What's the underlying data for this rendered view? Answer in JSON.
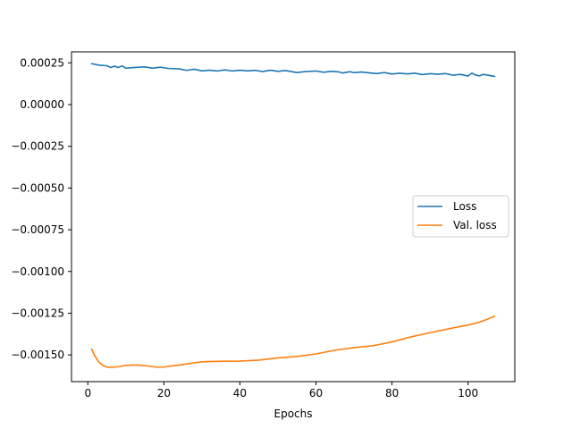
{
  "chart_data": {
    "type": "line",
    "title": "",
    "xlabel": "Epochs",
    "ylabel": "",
    "xlim": [
      -4.3,
      112.3
    ],
    "ylim": [
      -0.00166,
      0.000316
    ],
    "x_ticks": [
      0,
      20,
      40,
      60,
      80,
      100
    ],
    "x_tick_labels": [
      "0",
      "20",
      "40",
      "60",
      "80",
      "100"
    ],
    "y_ticks": [
      0.00025,
      0,
      -0.00025,
      -0.0005,
      -0.00075,
      -0.001,
      -0.00125,
      -0.0015
    ],
    "y_tick_labels": [
      "0.00025",
      "0.00000",
      "−0.00025",
      "−0.00050",
      "−0.00075",
      "−0.00100",
      "−0.00125",
      "−0.00150"
    ],
    "grid": false,
    "legend_position": "center-right",
    "series": [
      {
        "name": "Loss",
        "color": "#1f77b4",
        "points": [
          [
            1,
            0.000245
          ],
          [
            3,
            0.000236
          ],
          [
            5,
            0.000233
          ],
          [
            6,
            0.000222
          ],
          [
            7,
            0.00023
          ],
          [
            8,
            0.000222
          ],
          [
            9,
            0.000232
          ],
          [
            10,
            0.000218
          ],
          [
            12,
            0.000222
          ],
          [
            15,
            0.000226
          ],
          [
            17,
            0.000218
          ],
          [
            19,
            0.000224
          ],
          [
            21,
            0.000217
          ],
          [
            24,
            0.000214
          ],
          [
            26,
            0.000205
          ],
          [
            28,
            0.000212
          ],
          [
            30,
            0.000202
          ],
          [
            32,
            0.000206
          ],
          [
            34,
            0.000201
          ],
          [
            36,
            0.000208
          ],
          [
            38,
            0.000201
          ],
          [
            40,
            0.000206
          ],
          [
            42,
            0.000202
          ],
          [
            44,
            0.000205
          ],
          [
            46,
            0.000198
          ],
          [
            48,
            0.000206
          ],
          [
            50,
            0.000199
          ],
          [
            52,
            0.000204
          ],
          [
            54,
            0.000196
          ],
          [
            55,
            0.000192
          ],
          [
            57,
            0.000197
          ],
          [
            60,
            0.000201
          ],
          [
            62,
            0.000194
          ],
          [
            64,
            0.000199
          ],
          [
            66,
            0.000196
          ],
          [
            67,
            0.000189
          ],
          [
            69,
            0.000197
          ],
          [
            70,
            0.000191
          ],
          [
            72,
            0.000195
          ],
          [
            74,
            0.00019
          ],
          [
            76,
            0.000186
          ],
          [
            78,
            0.000192
          ],
          [
            80,
            0.000183
          ],
          [
            82,
            0.000188
          ],
          [
            84,
            0.000184
          ],
          [
            86,
            0.000188
          ],
          [
            88,
            0.00018
          ],
          [
            90,
            0.000185
          ],
          [
            92,
            0.000182
          ],
          [
            94,
            0.000186
          ],
          [
            96,
            0.000176
          ],
          [
            98,
            0.000181
          ],
          [
            100,
            0.000171
          ],
          [
            101,
            0.000188
          ],
          [
            102,
            0.000177
          ],
          [
            103,
            0.000172
          ],
          [
            104,
            0.000181
          ],
          [
            106,
            0.000173
          ],
          [
            107,
            0.000169
          ]
        ]
      },
      {
        "name": "Val. loss",
        "color": "#ff7f0e",
        "points": [
          [
            1,
            -0.001465
          ],
          [
            2,
            -0.001512
          ],
          [
            3,
            -0.001545
          ],
          [
            4,
            -0.001563
          ],
          [
            5,
            -0.001572
          ],
          [
            6,
            -0.001575
          ],
          [
            8,
            -0.001571
          ],
          [
            10,
            -0.001563
          ],
          [
            12,
            -0.00156
          ],
          [
            14,
            -0.001562
          ],
          [
            16,
            -0.001567
          ],
          [
            18,
            -0.001573
          ],
          [
            20,
            -0.001573
          ],
          [
            22,
            -0.001566
          ],
          [
            25,
            -0.001557
          ],
          [
            28,
            -0.001547
          ],
          [
            30,
            -0.001541
          ],
          [
            35,
            -0.001538
          ],
          [
            40,
            -0.001537
          ],
          [
            45,
            -0.001531
          ],
          [
            50,
            -0.001518
          ],
          [
            55,
            -0.001509
          ],
          [
            60,
            -0.001494
          ],
          [
            65,
            -0.001472
          ],
          [
            70,
            -0.001456
          ],
          [
            75,
            -0.001445
          ],
          [
            80,
            -0.001422
          ],
          [
            85,
            -0.001392
          ],
          [
            90,
            -0.001367
          ],
          [
            95,
            -0.001343
          ],
          [
            100,
            -0.001321
          ],
          [
            103,
            -0.001304
          ],
          [
            105,
            -0.001287
          ],
          [
            107,
            -0.001268
          ]
        ]
      }
    ]
  }
}
